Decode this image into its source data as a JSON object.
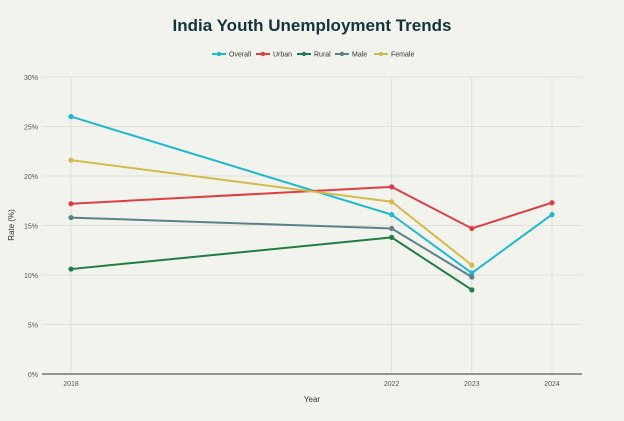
{
  "chart_data": {
    "type": "line",
    "title": "India Youth Unemployment Trends",
    "xlabel": "Year",
    "ylabel": "Rate (%)",
    "x": [
      2018,
      2022,
      2023,
      2024
    ],
    "x_tick_labels": [
      "2018",
      "2022",
      "2023",
      "2024"
    ],
    "ylim": [
      0,
      30
    ],
    "y_ticks": [
      0,
      5,
      10,
      15,
      20,
      25,
      30
    ],
    "y_tick_labels": [
      "0%",
      "5%",
      "10%",
      "15%",
      "20%",
      "25%",
      "30%"
    ],
    "grid": true,
    "legend_placement": "top-center",
    "series": [
      {
        "name": "Overall",
        "color": "#1fb8cd",
        "values": [
          26.0,
          16.1,
          10.2,
          16.1
        ]
      },
      {
        "name": "Urban",
        "color": "#db3e45",
        "values": [
          17.2,
          18.9,
          14.7,
          17.3
        ]
      },
      {
        "name": "Rural",
        "color": "#1e7d45",
        "values": [
          10.6,
          13.8,
          8.5,
          null
        ]
      },
      {
        "name": "Male",
        "color": "#5d818b",
        "values": [
          15.8,
          14.7,
          9.8,
          null
        ]
      },
      {
        "name": "Female",
        "color": "#d2ba4c",
        "values": [
          21.6,
          17.4,
          11.0,
          null
        ]
      }
    ]
  }
}
